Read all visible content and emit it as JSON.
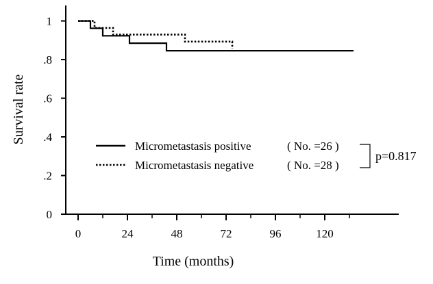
{
  "chart_data": {
    "type": "line",
    "subtype": "kaplan-meier-step",
    "title": "",
    "xlabel": "Time (months)",
    "ylabel": "Survival rate",
    "xlim": [
      -6,
      156
    ],
    "ylim": [
      0,
      1.08
    ],
    "x_ticks": [
      0,
      24,
      48,
      72,
      96,
      120
    ],
    "x_tick_labels": [
      "0",
      "24",
      "48",
      "72",
      "96",
      "120"
    ],
    "x_minor_ticks": [
      12,
      36,
      60,
      84,
      108,
      132
    ],
    "y_ticks": [
      0,
      0.2,
      0.4,
      0.6,
      0.8,
      1.0
    ],
    "y_tick_labels": [
      "0",
      ".2",
      ".4",
      ".6",
      ".8",
      "1"
    ],
    "grid": false,
    "legend_position": "center",
    "series": [
      {
        "name": "Micrometastasis positive",
        "count_label": "( No. =26 )",
        "line_style": "solid",
        "color": "#000000",
        "points": [
          [
            0,
            1.0
          ],
          [
            6,
            1.0
          ],
          [
            6,
            0.962
          ],
          [
            12,
            0.962
          ],
          [
            12,
            0.923
          ],
          [
            25,
            0.923
          ],
          [
            25,
            0.885
          ],
          [
            43,
            0.885
          ],
          [
            43,
            0.846
          ],
          [
            134,
            0.846
          ]
        ]
      },
      {
        "name": "Micrometastasis negative",
        "count_label": "( No. =28 )",
        "line_style": "dotted",
        "color": "#000000",
        "points": [
          [
            0,
            1.0
          ],
          [
            8,
            1.0
          ],
          [
            8,
            0.964
          ],
          [
            17,
            0.964
          ],
          [
            17,
            0.929
          ],
          [
            52,
            0.929
          ],
          [
            52,
            0.893
          ],
          [
            75,
            0.893
          ],
          [
            75,
            0.857
          ]
        ]
      }
    ],
    "annotation": {
      "text": "p=0.817"
    }
  }
}
